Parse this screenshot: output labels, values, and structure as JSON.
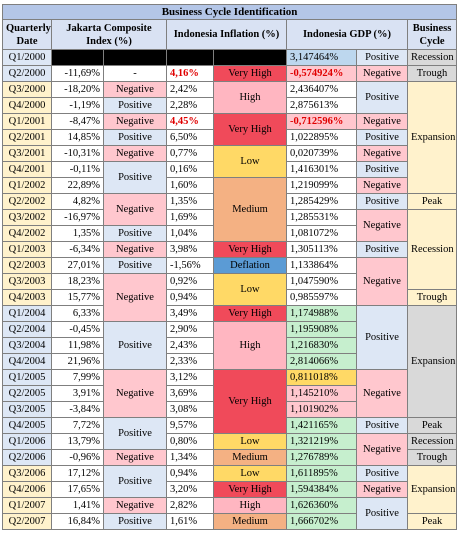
{
  "title": "Business Cycle Identification",
  "headers": {
    "quarter": "Quarterly Date",
    "jci": "Jakarta Composite Index (%)",
    "inflation": "Indonesia Inflation (%)",
    "gdp": "Indonesia GDP (%)",
    "cycle": "Business Cycle"
  },
  "colors": {
    "negative": "#ffc7ce",
    "positive": "#dde7f5",
    "very_high": "#f04a5a",
    "high": "#ffb6c1",
    "medium": "#f4b183",
    "low": "#ffd966",
    "deflation": "#5b9bd5",
    "expansion": "#fff2cc",
    "recession": "#d9d9d9",
    "trough": "#d9d9d9",
    "peak": "#fff2cc",
    "quarter_yellow": "#fff2cc",
    "quarter_blue": "#dde7f5",
    "green": "#c6efce",
    "gdp_first": "#bdd7ee"
  },
  "rows": [
    {
      "q": "Q1/2000",
      "jci": "",
      "infl": "",
      "gdp": "3,147464%",
      "gdp_color": "gdp_first",
      "qc": "quarter_blue"
    },
    {
      "q": "Q2/2000",
      "jci": "-11,69%",
      "infl": "4,16%",
      "infl_red": true,
      "gdp": "-0,574924%",
      "gdp_red": true,
      "qc": "quarter_blue"
    },
    {
      "q": "Q3/2000",
      "jci": "-18,20%",
      "infl": "2,42%",
      "gdp": "2,436407%",
      "qc": "quarter_yellow"
    },
    {
      "q": "Q4/2000",
      "jci": "-1,19%",
      "infl": "2,28%",
      "gdp": "2,875613%",
      "qc": "quarter_yellow"
    },
    {
      "q": "Q1/2001",
      "jci": "-8,47%",
      "infl": "4,45%",
      "infl_red": true,
      "gdp": "-0,712596%",
      "gdp_red": true,
      "qc": "quarter_yellow"
    },
    {
      "q": "Q2/2001",
      "jci": "14,85%",
      "infl": "6,50%",
      "gdp": "1,022895%",
      "qc": "quarter_yellow"
    },
    {
      "q": "Q3/2001",
      "jci": "-10,31%",
      "infl": "0,77%",
      "gdp": "0,020739%",
      "qc": "quarter_yellow"
    },
    {
      "q": "Q4/2001",
      "jci": "-0,11%",
      "infl": "0,16%",
      "gdp": "1,416301%",
      "qc": "quarter_yellow"
    },
    {
      "q": "Q1/2002",
      "jci": "22,89%",
      "infl": "1,60%",
      "gdp": "1,219099%",
      "qc": "quarter_yellow"
    },
    {
      "q": "Q2/2002",
      "jci": "4,82%",
      "infl": "1,35%",
      "gdp": "1,285429%",
      "qc": "quarter_yellow"
    },
    {
      "q": "Q3/2002",
      "jci": "-16,97%",
      "infl": "1,69%",
      "gdp": "1,285531%",
      "qc": "quarter_yellow"
    },
    {
      "q": "Q4/2002",
      "jci": "1,35%",
      "infl": "1,04%",
      "gdp": "1,081072%",
      "qc": "quarter_yellow"
    },
    {
      "q": "Q1/2003",
      "jci": "-6,34%",
      "infl": "3,98%",
      "gdp": "1,305113%",
      "qc": "quarter_yellow"
    },
    {
      "q": "Q2/2003",
      "jci": "27,01%",
      "infl": "-1,56%",
      "gdp": "1,133864%",
      "qc": "quarter_yellow"
    },
    {
      "q": "Q3/2003",
      "jci": "18,23%",
      "infl": "0,92%",
      "gdp": "1,047590%",
      "qc": "quarter_yellow"
    },
    {
      "q": "Q4/2003",
      "jci": "15,77%",
      "infl": "0,94%",
      "gdp": "0,985597%",
      "qc": "quarter_yellow"
    },
    {
      "q": "Q1/2004",
      "jci": "6,33%",
      "infl": "3,49%",
      "gdp": "1,174988%",
      "qc": "quarter_blue"
    },
    {
      "q": "Q2/2004",
      "jci": "-0,45%",
      "infl": "2,90%",
      "gdp": "1,195908%",
      "qc": "quarter_blue"
    },
    {
      "q": "Q3/2004",
      "jci": "11,98%",
      "infl": "2,43%",
      "gdp": "1,216830%",
      "qc": "quarter_blue"
    },
    {
      "q": "Q4/2004",
      "jci": "21,96%",
      "infl": "2,33%",
      "gdp": "2,814066%",
      "qc": "quarter_blue"
    },
    {
      "q": "Q1/2005",
      "jci": "7,99%",
      "infl": "3,12%",
      "gdp": "0,811018%",
      "qc": "quarter_blue"
    },
    {
      "q": "Q2/2005",
      "jci": "3,91%",
      "infl": "3,69%",
      "gdp": "1,145210%",
      "qc": "quarter_blue"
    },
    {
      "q": "Q3/2005",
      "jci": "-3,84%",
      "infl": "3,08%",
      "gdp": "1,101902%",
      "qc": "quarter_blue"
    },
    {
      "q": "Q4/2005",
      "jci": "7,72%",
      "infl": "9,57%",
      "gdp": "1,421165%",
      "qc": "quarter_blue"
    },
    {
      "q": "Q1/2006",
      "jci": "13,79%",
      "infl": "0,80%",
      "gdp": "1,321219%",
      "qc": "quarter_blue"
    },
    {
      "q": "Q2/2006",
      "jci": "-0,96%",
      "infl": "1,34%",
      "gdp": "1,276789%",
      "qc": "quarter_blue"
    },
    {
      "q": "Q3/2006",
      "jci": "17,12%",
      "infl": "0,94%",
      "gdp": "1,611895%",
      "qc": "quarter_yellow"
    },
    {
      "q": "Q4/2006",
      "jci": "17,65%",
      "infl": "3,20%",
      "gdp": "1,594384%",
      "qc": "quarter_yellow"
    },
    {
      "q": "Q1/2007",
      "jci": "1,41%",
      "infl": "2,82%",
      "gdp": "1,626360%",
      "qc": "quarter_yellow"
    },
    {
      "q": "Q2/2007",
      "jci": "16,84%",
      "infl": "1,61%",
      "gdp": "1,666702%",
      "qc": "quarter_yellow"
    }
  ],
  "jci_groups": [
    {
      "start": 0,
      "span": 1,
      "label": "",
      "color": "black"
    },
    {
      "start": 1,
      "span": 1,
      "label": "-",
      "color": ""
    },
    {
      "start": 2,
      "span": 1,
      "label": "Negative",
      "color": "negative"
    },
    {
      "start": 3,
      "span": 1,
      "label": "Positive",
      "color": "positive"
    },
    {
      "start": 4,
      "span": 1,
      "label": "Negative",
      "color": "negative"
    },
    {
      "start": 5,
      "span": 1,
      "label": "Positive",
      "color": "positive"
    },
    {
      "start": 6,
      "span": 1,
      "label": "Negative",
      "color": "negative"
    },
    {
      "start": 7,
      "span": 2,
      "label": "Positive",
      "color": "positive"
    },
    {
      "start": 9,
      "span": 2,
      "label": "Negative",
      "color": "negative"
    },
    {
      "start": 11,
      "span": 1,
      "label": "Positive",
      "color": "positive"
    },
    {
      "start": 12,
      "span": 1,
      "label": "Negative",
      "color": "negative"
    },
    {
      "start": 13,
      "span": 1,
      "label": "Positive",
      "color": "positive"
    },
    {
      "start": 14,
      "span": 3,
      "label": "Negative",
      "color": "negative"
    },
    {
      "start": 17,
      "span": 3,
      "label": "Positive",
      "color": "positive"
    },
    {
      "start": 20,
      "span": 3,
      "label": "Negative",
      "color": "negative"
    },
    {
      "start": 23,
      "span": 2,
      "label": "Positive",
      "color": "positive"
    },
    {
      "start": 25,
      "span": 1,
      "label": "Negative",
      "color": "negative"
    },
    {
      "start": 26,
      "span": 2,
      "label": "Positive",
      "color": "positive"
    },
    {
      "start": 28,
      "span": 1,
      "label": "Negative",
      "color": "negative"
    },
    {
      "start": 29,
      "span": 1,
      "label": "Positive",
      "color": "positive"
    }
  ],
  "infl_groups": [
    {
      "start": 0,
      "span": 1,
      "label": "",
      "color": "black"
    },
    {
      "start": 1,
      "span": 1,
      "label": "Very High",
      "color": "very_high"
    },
    {
      "start": 2,
      "span": 2,
      "label": "High",
      "color": "high"
    },
    {
      "start": 4,
      "span": 2,
      "label": "Very High",
      "color": "very_high"
    },
    {
      "start": 6,
      "span": 2,
      "label": "Low",
      "color": "low"
    },
    {
      "start": 8,
      "span": 4,
      "label": "Medium",
      "color": "medium"
    },
    {
      "start": 12,
      "span": 1,
      "label": "Very High",
      "color": "very_high"
    },
    {
      "start": 13,
      "span": 1,
      "label": "Deflation",
      "color": "deflation"
    },
    {
      "start": 14,
      "span": 2,
      "label": "Low",
      "color": "low"
    },
    {
      "start": 16,
      "span": 1,
      "label": "Very High",
      "color": "very_high"
    },
    {
      "start": 17,
      "span": 3,
      "label": "High",
      "color": "high"
    },
    {
      "start": 20,
      "span": 4,
      "label": "Very High",
      "color": "very_high"
    },
    {
      "start": 24,
      "span": 1,
      "label": "Low",
      "color": "low"
    },
    {
      "start": 25,
      "span": 1,
      "label": "Medium",
      "color": "medium"
    },
    {
      "start": 26,
      "span": 1,
      "label": "Low",
      "color": "low"
    },
    {
      "start": 27,
      "span": 1,
      "label": "Very High",
      "color": "very_high"
    },
    {
      "start": 28,
      "span": 1,
      "label": "High",
      "color": "high"
    },
    {
      "start": 29,
      "span": 1,
      "label": "Medium",
      "color": "medium"
    }
  ],
  "gdp_groups": [
    {
      "start": 0,
      "span": 1,
      "label": "Positive",
      "color": "positive"
    },
    {
      "start": 1,
      "span": 1,
      "label": "Negative",
      "color": "negative"
    },
    {
      "start": 2,
      "span": 2,
      "label": "Positive",
      "color": "positive"
    },
    {
      "start": 4,
      "span": 1,
      "label": "Negative",
      "color": "negative"
    },
    {
      "start": 5,
      "span": 1,
      "label": "Positive",
      "color": "positive"
    },
    {
      "start": 6,
      "span": 1,
      "label": "Negative",
      "color": "negative"
    },
    {
      "start": 7,
      "span": 1,
      "label": "Positive",
      "color": "positive"
    },
    {
      "start": 8,
      "span": 1,
      "label": "Negative",
      "color": "negative"
    },
    {
      "start": 9,
      "span": 1,
      "label": "Positive",
      "color": "positive"
    },
    {
      "start": 10,
      "span": 2,
      "label": "Negative",
      "color": "negative"
    },
    {
      "start": 12,
      "span": 1,
      "label": "Positive",
      "color": "positive"
    },
    {
      "start": 13,
      "span": 3,
      "label": "Negative",
      "color": "negative"
    },
    {
      "start": 16,
      "span": 4,
      "label": "Positive",
      "color": "positive"
    },
    {
      "start": 20,
      "span": 3,
      "label": "Negative",
      "color": "negative"
    },
    {
      "start": 23,
      "span": 1,
      "label": "Positive",
      "color": "positive"
    },
    {
      "start": 24,
      "span": 2,
      "label": "Negative",
      "color": "negative"
    },
    {
      "start": 26,
      "span": 1,
      "label": "Positive",
      "color": "positive"
    },
    {
      "start": 27,
      "span": 1,
      "label": "Negative",
      "color": "negative"
    },
    {
      "start": 28,
      "span": 2,
      "label": "Positive",
      "color": "positive"
    }
  ],
  "gdp_value_colors": {
    "1": "negative",
    "4": "negative",
    "16": "green",
    "17": "green",
    "18": "green",
    "19": "green",
    "20": "low",
    "21": "negative",
    "22": "negative",
    "23": "green",
    "24": "green",
    "25": "green",
    "26": "green",
    "27": "green",
    "28": "green",
    "29": "green"
  },
  "cycle_groups": [
    {
      "start": 0,
      "span": 1,
      "label": "Recession",
      "color": "recession"
    },
    {
      "start": 1,
      "span": 1,
      "label": "Trough",
      "color": "trough"
    },
    {
      "start": 2,
      "span": 7,
      "label": "Expansion",
      "color": "expansion"
    },
    {
      "start": 9,
      "span": 1,
      "label": "Peak",
      "color": "peak"
    },
    {
      "start": 10,
      "span": 5,
      "label": "Recession",
      "color": "expansion"
    },
    {
      "start": 15,
      "span": 1,
      "label": "Trough",
      "color": "peak"
    },
    {
      "start": 16,
      "span": 7,
      "label": "Expansion",
      "color": "recession"
    },
    {
      "start": 23,
      "span": 1,
      "label": "Peak",
      "color": "recession"
    },
    {
      "start": 24,
      "span": 1,
      "label": "Recession",
      "color": "recession"
    },
    {
      "start": 25,
      "span": 1,
      "label": "Trough",
      "color": "recession"
    },
    {
      "start": 26,
      "span": 3,
      "label": "Expansion",
      "color": "expansion"
    },
    {
      "start": 29,
      "span": 1,
      "label": "Peak",
      "color": "expansion"
    }
  ]
}
